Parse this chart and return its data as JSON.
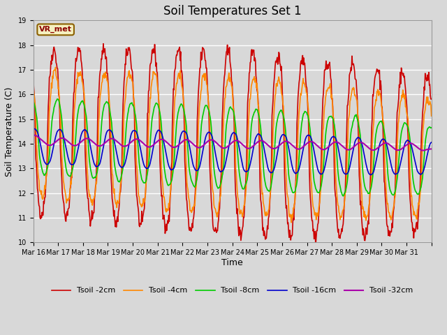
{
  "title": "Soil Temperatures Set 1",
  "xlabel": "Time",
  "ylabel": "Soil Temperature (C)",
  "ylim": [
    10.0,
    19.0
  ],
  "yticks": [
    10.0,
    11.0,
    12.0,
    13.0,
    14.0,
    15.0,
    16.0,
    17.0,
    18.0,
    19.0
  ],
  "background_color": "#d8d8d8",
  "plot_bg_color": "#d8d8d8",
  "annotation_text": "VR_met",
  "annotation_bbox_facecolor": "#f5f0c0",
  "annotation_bbox_edgecolor": "#8b6000",
  "annotation_color": "#8b0000",
  "annotation_fontsize": 8,
  "series": [
    {
      "label": "Tsoil -2cm",
      "color": "#cc0000",
      "linewidth": 1.2
    },
    {
      "label": "Tsoil -4cm",
      "color": "#ff8800",
      "linewidth": 1.2
    },
    {
      "label": "Tsoil -8cm",
      "color": "#00cc00",
      "linewidth": 1.2
    },
    {
      "label": "Tsoil -16cm",
      "color": "#0000cc",
      "linewidth": 1.2
    },
    {
      "label": "Tsoil -32cm",
      "color": "#aa00aa",
      "linewidth": 1.5
    }
  ],
  "xtick_labels": [
    "Mar 16",
    "Mar 17",
    "Mar 18",
    "Mar 19",
    "Mar 20",
    "Mar 21",
    "Mar 22",
    "Mar 23",
    "Mar 24",
    "Mar 25",
    "Mar 26",
    "Mar 27",
    "Mar 28",
    "Mar 29",
    "Mar 30",
    "Mar 31"
  ],
  "title_fontsize": 12,
  "axis_label_fontsize": 9,
  "tick_fontsize": 7,
  "legend_fontsize": 8,
  "grid_color": "#ffffff",
  "grid_linewidth": 1.0
}
